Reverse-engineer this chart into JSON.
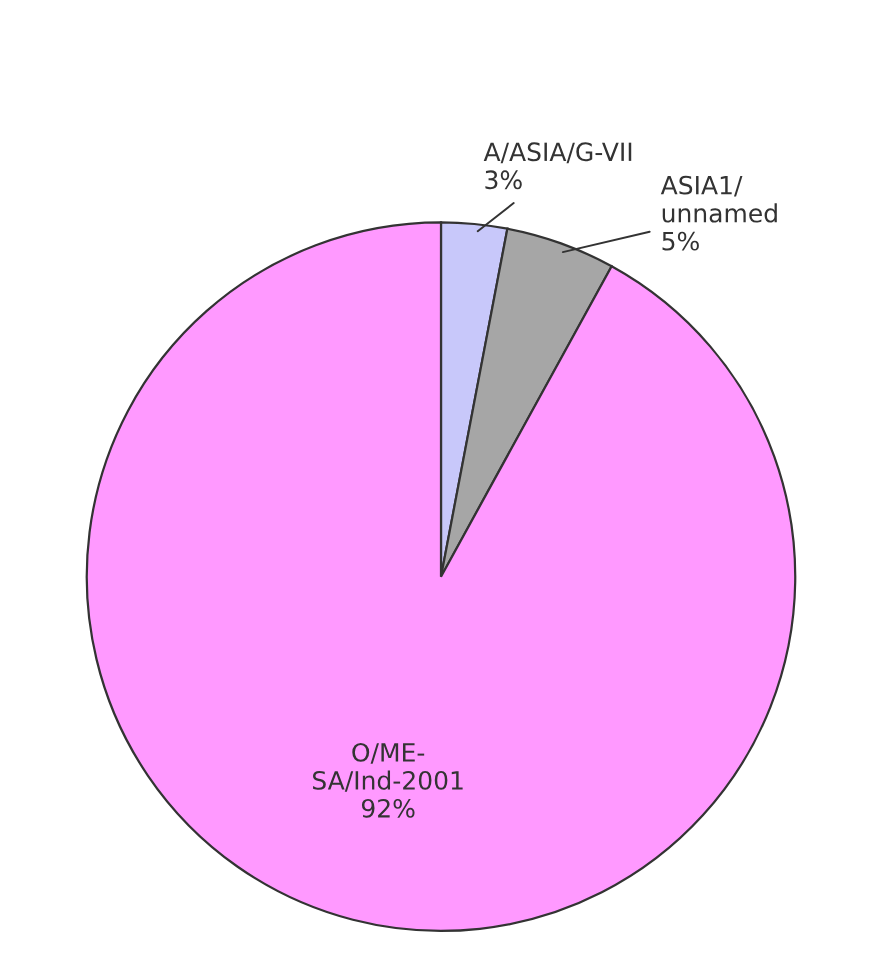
{
  "chart_data": {
    "type": "pie",
    "categories": [
      "A/ASIA/G-VII",
      "ASIA1/\nunnamed",
      "O/ME-\nSA/Ind-2001"
    ],
    "values": [
      3,
      5,
      92
    ],
    "value_labels": [
      "3%",
      "5%",
      "92%"
    ],
    "colors": [
      "#c8c8fa",
      "#a6a6a6",
      "#ff99ff"
    ]
  }
}
